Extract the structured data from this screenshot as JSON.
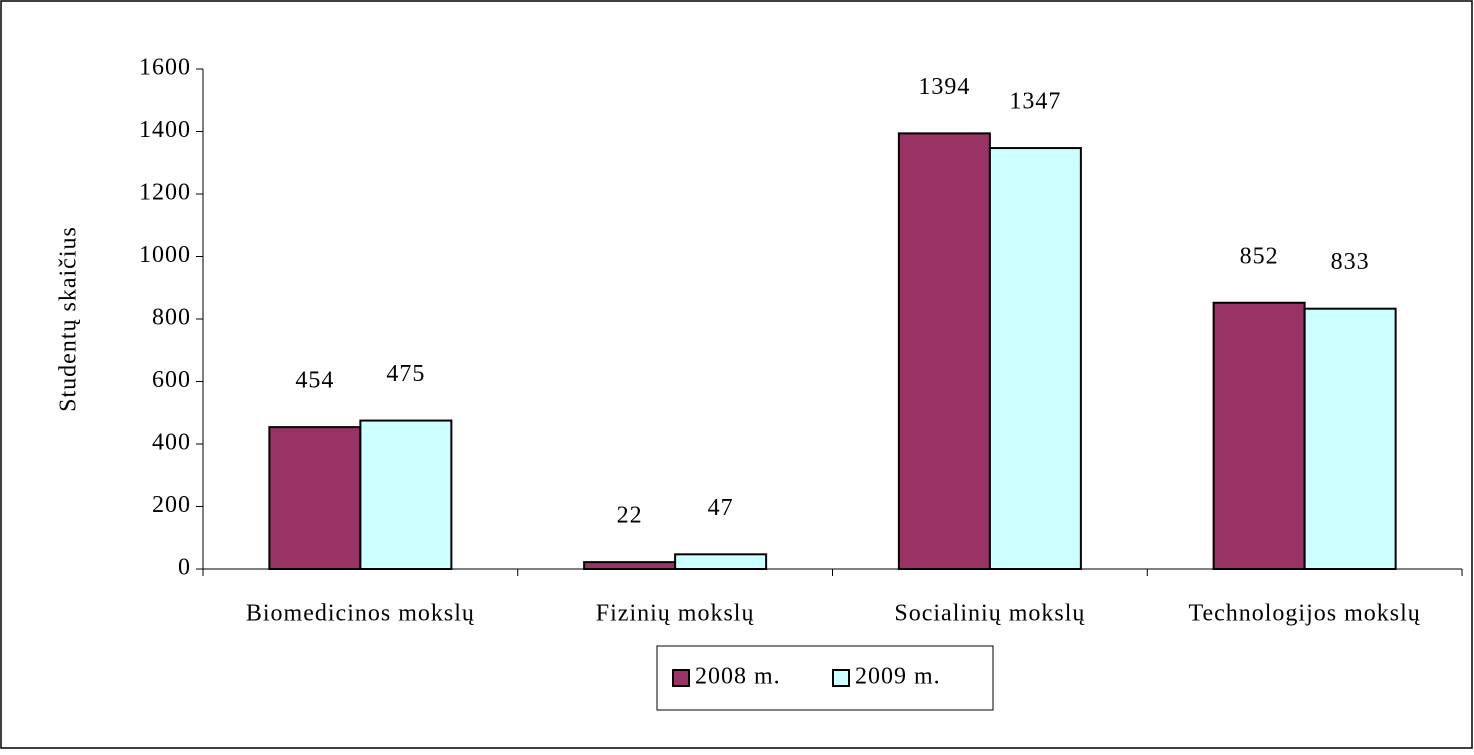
{
  "chart_data": {
    "type": "bar",
    "y_label": "Studentų skaičius",
    "categories": [
      "Biomedicinos mokslų",
      "Fizinių mokslų",
      "Socialinių mokslų",
      "Technologijos mokslų"
    ],
    "series": [
      {
        "name": "2008 m.",
        "color": "#993366",
        "values": [
          454,
          22,
          1394,
          852
        ]
      },
      {
        "name": "2009 m.",
        "color": "#ccffff",
        "values": [
          475,
          47,
          1347,
          833
        ]
      }
    ],
    "ylim": [
      0,
      1600
    ],
    "yticks": [
      0,
      200,
      400,
      600,
      800,
      1000,
      1200,
      1400,
      1600
    ],
    "legend": "bottom"
  }
}
